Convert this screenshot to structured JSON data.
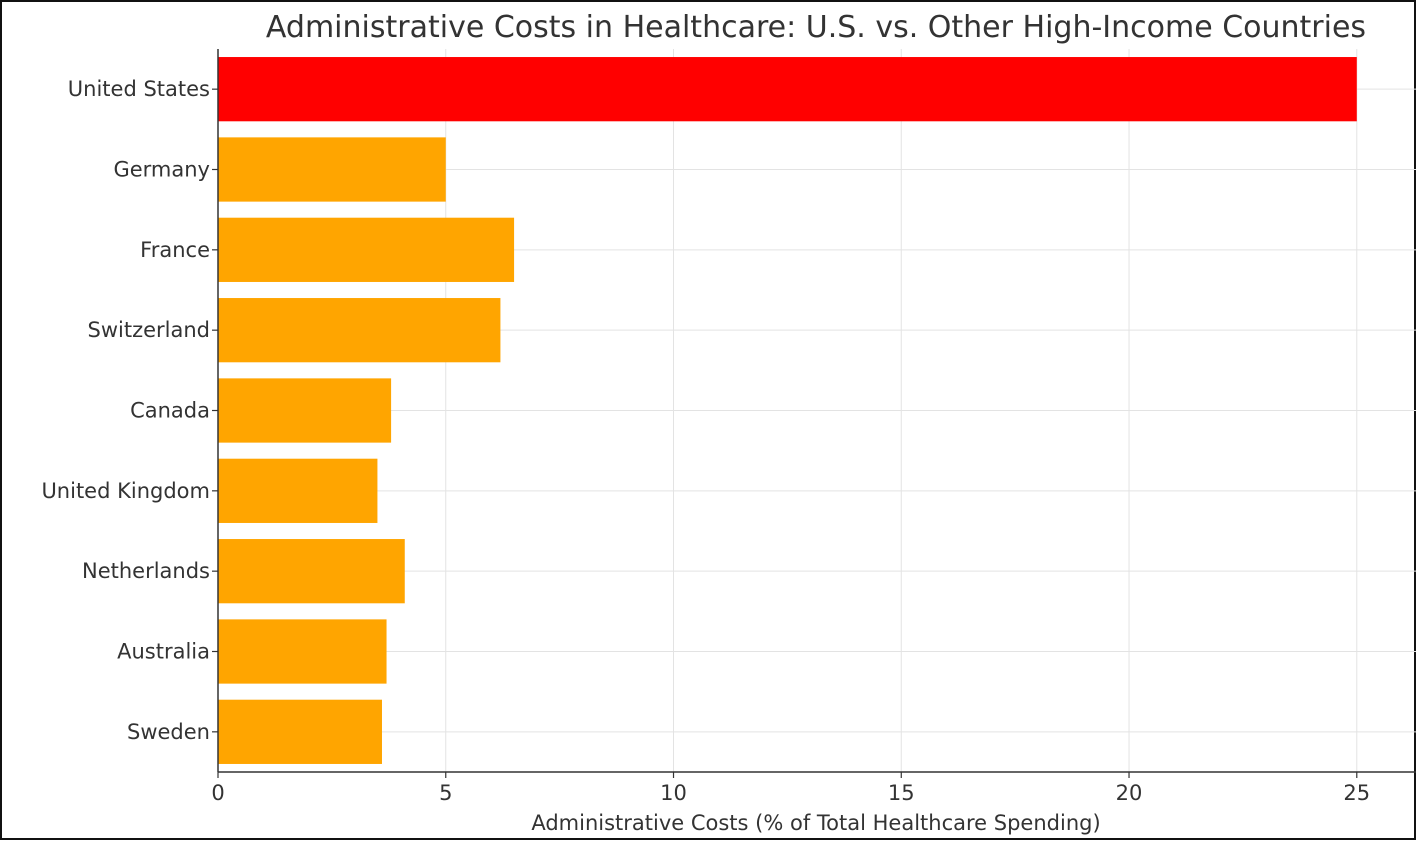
{
  "chart_data": {
    "type": "bar",
    "orientation": "horizontal",
    "title": "Administrative Costs in Healthcare: U.S. vs. Other High-Income Countries",
    "xlabel": "Administrative Costs (% of Total Healthcare Spending)",
    "ylabel": "",
    "categories": [
      "United States",
      "Germany",
      "France",
      "Switzerland",
      "Canada",
      "United Kingdom",
      "Netherlands",
      "Australia",
      "Sweden"
    ],
    "values": [
      25,
      5,
      6.5,
      6.2,
      3.8,
      3.5,
      4.1,
      3.7,
      3.6
    ],
    "colors": [
      "#ff0000",
      "#ffa500",
      "#ffa500",
      "#ffa500",
      "#ffa500",
      "#ffa500",
      "#ffa500",
      "#ffa500",
      "#ffa500"
    ],
    "xlim": [
      0,
      26.3
    ],
    "xticks": [
      "0",
      "5",
      "10",
      "15",
      "20",
      "25"
    ],
    "grid": true,
    "legend": "none"
  }
}
